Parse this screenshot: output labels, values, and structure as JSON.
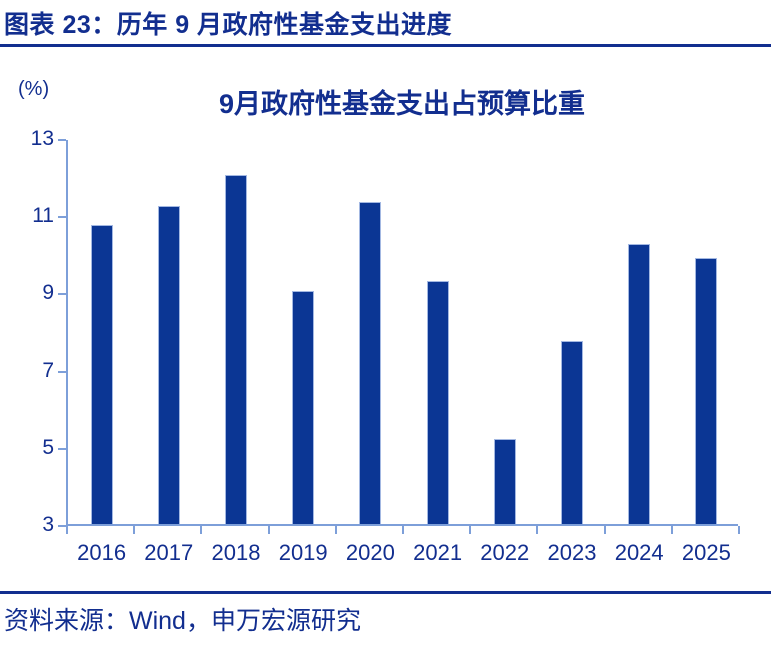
{
  "header": {
    "title": "图表 23：历年 9 月政府性基金支出进度"
  },
  "chart": {
    "unit_label": "(%)",
    "title": "9月政府性基金支出占预算比重"
  },
  "chart_data": {
    "type": "bar",
    "title": "9月政府性基金支出占预算比重",
    "categories": [
      "2016",
      "2017",
      "2018",
      "2019",
      "2020",
      "2021",
      "2022",
      "2023",
      "2024",
      "2025"
    ],
    "values": [
      10.75,
      11.25,
      12.05,
      9.05,
      11.35,
      9.3,
      5.2,
      7.75,
      10.25,
      9.9
    ],
    "xlabel": "",
    "ylabel": "(%)",
    "ylim": [
      3,
      13
    ],
    "yticks": [
      3,
      5,
      7,
      9,
      11,
      13
    ],
    "grid": false,
    "legend": "none",
    "bar_color": "#0b3694",
    "axis_color": "#7d9fd9",
    "text_color": "#122e8f"
  },
  "footer": {
    "source": "资料来源：Wind，申万宏源研究"
  }
}
